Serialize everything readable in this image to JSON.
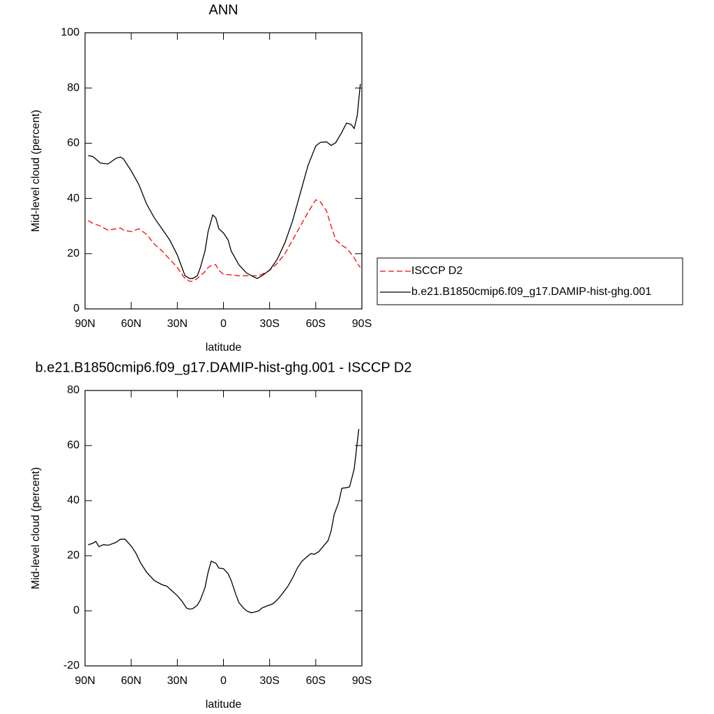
{
  "chart_data": [
    {
      "type": "line",
      "title": "ANN",
      "xlabel": "latitude",
      "ylabel": "Mid-level cloud (percent)",
      "x": [
        88,
        85,
        80,
        75,
        70,
        67,
        65,
        60,
        55,
        50,
        45,
        40,
        35,
        30,
        27,
        25,
        22,
        20,
        17,
        15,
        12,
        10,
        7,
        5,
        3,
        0,
        -3,
        -5,
        -10,
        -15,
        -20,
        -22,
        -25,
        -30,
        -35,
        -40,
        -45,
        -50,
        -55,
        -60,
        -63,
        -67,
        -70,
        -73,
        -77,
        -80,
        -83,
        -85,
        -87,
        -89
      ],
      "series": [
        {
          "name": "ISCCP D2",
          "color": "#ff0000",
          "dash": true,
          "values": [
            32,
            31,
            30,
            28.5,
            29,
            29.3,
            28.5,
            28,
            29,
            27,
            23.5,
            21,
            18,
            15,
            12.5,
            11,
            10,
            10,
            11,
            12,
            13.5,
            15,
            16,
            16,
            14,
            12.5,
            12.4,
            12.3,
            12,
            12,
            12,
            12,
            12.5,
            14,
            16.5,
            20,
            25,
            30,
            35,
            39.5,
            38.8,
            35.5,
            30,
            25,
            23,
            22,
            20,
            18.5,
            16.5,
            15
          ]
        },
        {
          "name": "b.e21.B1850cmip6.f09_g17.DAMIP-hist-ghg.001",
          "color": "#000000",
          "dash": false,
          "values": [
            55.5,
            55.2,
            52.8,
            52.5,
            54.5,
            55,
            54.3,
            50,
            45,
            38,
            33,
            29,
            25,
            19.5,
            15,
            12,
            11,
            11,
            12,
            15,
            21,
            28,
            34,
            33,
            29,
            27.5,
            25,
            21,
            16,
            13,
            11.5,
            11,
            12,
            14,
            18,
            24,
            32,
            42,
            52,
            59,
            60.3,
            60.5,
            59.2,
            60.2,
            64,
            67.3,
            66.8,
            65.3,
            70,
            81.5
          ]
        }
      ],
      "xlim": [
        90,
        -90
      ],
      "xticks": [
        {
          "value": 90,
          "label": "90N"
        },
        {
          "value": 60,
          "label": "60N"
        },
        {
          "value": 30,
          "label": "30N"
        },
        0,
        {
          "value": -30,
          "label": "30S"
        },
        {
          "value": -60,
          "label": "60S"
        },
        {
          "value": -90,
          "label": "90S"
        }
      ],
      "ylim": [
        0,
        100
      ],
      "yticks": [
        0,
        20,
        40,
        60,
        80,
        100
      ],
      "legend": "right"
    },
    {
      "type": "line",
      "title": "b.e21.B1850cmip6.f09_g17.DAMIP-hist-ghg.001 - ISCCP D2",
      "xlabel": "latitude",
      "ylabel": "Mid-level cloud (percent)",
      "x": [
        88,
        85,
        83,
        81,
        78,
        75,
        70,
        67,
        64,
        60,
        57,
        54,
        50,
        45,
        40,
        37,
        33,
        30,
        27,
        24,
        22,
        20,
        17,
        15,
        12,
        10,
        8,
        5,
        3,
        0,
        -3,
        -5,
        -8,
        -10,
        -13,
        -15,
        -18,
        -20,
        -23,
        -25,
        -28,
        -32,
        -35,
        -38,
        -42,
        -45,
        -48,
        -51,
        -54,
        -57,
        -59,
        -62,
        -65,
        -68,
        -70,
        -72,
        -75,
        -77,
        -80,
        -82,
        -85,
        -88
      ],
      "series": [
        {
          "name": "b.e21.B1850cmip6.f09_g17.DAMIP-hist-ghg.001",
          "color": "#000000",
          "dash": false,
          "values": [
            24,
            24.5,
            25.2,
            23.3,
            24,
            23.8,
            24.8,
            26,
            26,
            23.5,
            21,
            17.5,
            14,
            11,
            9.5,
            9,
            7,
            5.5,
            3.5,
            1,
            0.6,
            0.8,
            2,
            4,
            8.5,
            14,
            18,
            17.3,
            15.5,
            15.3,
            13.5,
            11,
            6,
            3,
            1,
            0,
            -0.7,
            -0.5,
            0,
            1,
            1.7,
            2.5,
            4,
            6,
            9,
            12,
            15.5,
            18,
            19.5,
            20.8,
            20.5,
            21.5,
            23.5,
            25.5,
            29,
            35,
            39.5,
            44.5,
            44.7,
            45,
            51.5,
            66
          ]
        }
      ],
      "xlim": [
        90,
        -90
      ],
      "xticks": [
        {
          "value": 90,
          "label": "90N"
        },
        {
          "value": 60,
          "label": "60N"
        },
        {
          "value": 30,
          "label": "30N"
        },
        0,
        {
          "value": -30,
          "label": "30S"
        },
        {
          "value": -60,
          "label": "60S"
        },
        {
          "value": -90,
          "label": "90S"
        }
      ],
      "ylim": [
        -20,
        80
      ],
      "yticks": [
        -20,
        0,
        20,
        40,
        60,
        80
      ]
    }
  ]
}
